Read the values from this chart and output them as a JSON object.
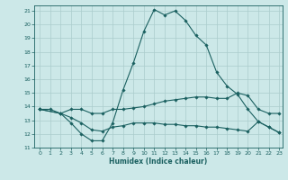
{
  "xlabel": "Humidex (Indice chaleur)",
  "bg_color": "#cce8e8",
  "grid_color": "#aacccc",
  "line_color": "#1a6060",
  "xlim": [
    -0.5,
    23.3
  ],
  "ylim": [
    11,
    21.4
  ],
  "xticks": [
    0,
    1,
    2,
    3,
    4,
    5,
    6,
    7,
    8,
    9,
    10,
    11,
    12,
    13,
    14,
    15,
    16,
    17,
    18,
    19,
    20,
    21,
    22,
    23
  ],
  "yticks": [
    11,
    12,
    13,
    14,
    15,
    16,
    17,
    18,
    19,
    20,
    21
  ],
  "line1_x": [
    0,
    1,
    2,
    3,
    4,
    5,
    6,
    7,
    8,
    9,
    10,
    11,
    12,
    13,
    14,
    15,
    16,
    17,
    18,
    19,
    20,
    21,
    22,
    23
  ],
  "line1_y": [
    13.8,
    13.8,
    13.5,
    12.8,
    12.0,
    11.5,
    11.5,
    12.8,
    15.2,
    17.2,
    19.5,
    21.1,
    20.7,
    21.0,
    20.3,
    19.2,
    18.5,
    16.5,
    15.5,
    14.9,
    13.8,
    12.9,
    12.5,
    12.1
  ],
  "line2_x": [
    0,
    2,
    3,
    4,
    5,
    6,
    7,
    8,
    9,
    10,
    11,
    12,
    13,
    14,
    15,
    16,
    17,
    18,
    19,
    20,
    21,
    22,
    23
  ],
  "line2_y": [
    13.8,
    13.5,
    13.8,
    13.8,
    13.5,
    13.5,
    13.8,
    13.8,
    13.9,
    14.0,
    14.2,
    14.4,
    14.5,
    14.6,
    14.7,
    14.7,
    14.6,
    14.6,
    15.0,
    14.8,
    13.8,
    13.5,
    13.5
  ],
  "line3_x": [
    0,
    2,
    3,
    4,
    5,
    6,
    7,
    8,
    9,
    10,
    11,
    12,
    13,
    14,
    15,
    16,
    17,
    18,
    19,
    20,
    21,
    22,
    23
  ],
  "line3_y": [
    13.8,
    13.5,
    13.2,
    12.8,
    12.3,
    12.2,
    12.5,
    12.6,
    12.8,
    12.8,
    12.8,
    12.7,
    12.7,
    12.6,
    12.6,
    12.5,
    12.5,
    12.4,
    12.3,
    12.2,
    12.9,
    12.5,
    12.1
  ]
}
